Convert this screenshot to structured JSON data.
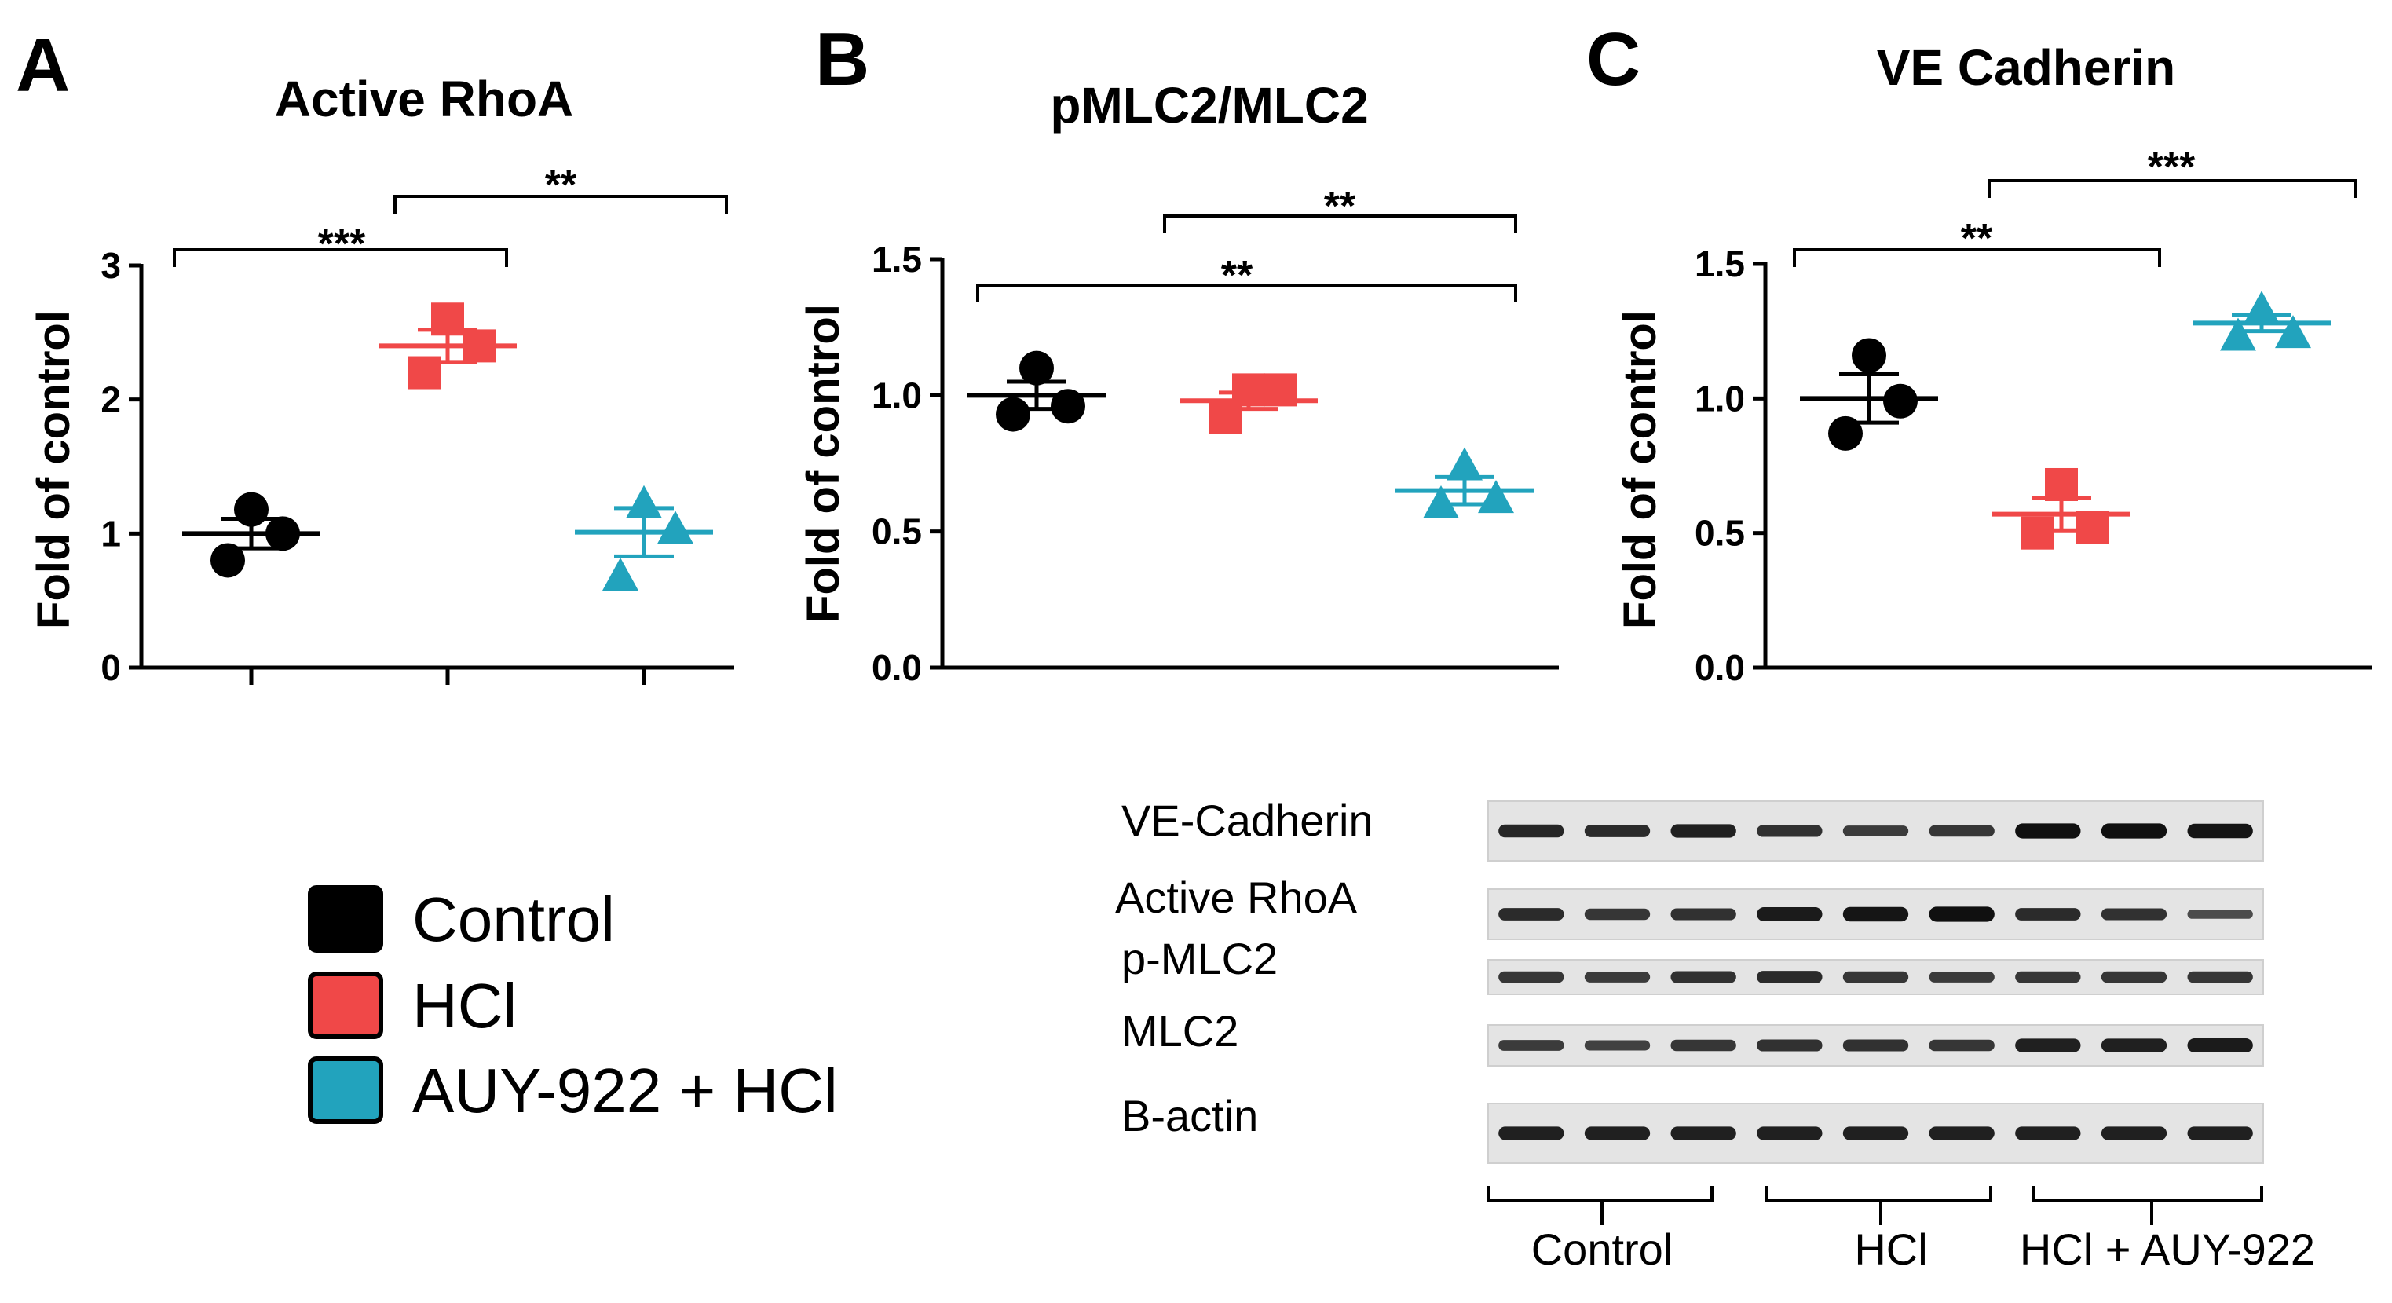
{
  "colors": {
    "Control": "#000000",
    "HCl": "#f04848",
    "AUY-922 + HCl": "#22a3bd",
    "axis": "#000000"
  },
  "legend": [
    {
      "label": "Control",
      "color": "#000000"
    },
    {
      "label": "HCl",
      "color": "#f04848"
    },
    {
      "label": "AUY-922 + HCl",
      "color": "#22a3bd"
    }
  ],
  "chart_data": [
    {
      "panel": "A",
      "type": "scatter",
      "title": "Active RhoA",
      "ylabel": "Fold of control",
      "xlabel": "",
      "ylim": [
        0,
        3
      ],
      "yticks": [
        "0",
        "1",
        "2",
        "3"
      ],
      "grid": false,
      "series": [
        {
          "name": "Control",
          "marker": "circle",
          "points": [
            0.8,
            1.0,
            1.18
          ],
          "mean": 1.0,
          "sem": 0.11
        },
        {
          "name": "HCl",
          "marker": "square",
          "points": [
            2.2,
            2.4,
            2.6
          ],
          "mean": 2.4,
          "sem": 0.12
        },
        {
          "name": "AUY-922 + HCl",
          "marker": "triangle",
          "points": [
            0.68,
            1.03,
            1.22
          ],
          "mean": 1.01,
          "sem": 0.18
        }
      ],
      "significance": [
        {
          "from": 0,
          "to": 1,
          "label": "***"
        },
        {
          "from": 1,
          "to": 2,
          "label": "**"
        }
      ]
    },
    {
      "panel": "B",
      "type": "scatter",
      "title": "pMLC2/MLC2",
      "ylabel": "Fold of control",
      "xlabel": "",
      "ylim": [
        0,
        1.5
      ],
      "yticks": [
        "0.0",
        "0.5",
        "1.0",
        "1.5"
      ],
      "grid": false,
      "series": [
        {
          "name": "Control",
          "marker": "circle",
          "points": [
            0.93,
            0.96,
            1.1
          ],
          "mean": 1.0,
          "sem": 0.05
        },
        {
          "name": "HCl",
          "marker": "square",
          "points": [
            0.92,
            1.02,
            1.02
          ],
          "mean": 0.98,
          "sem": 0.03
        },
        {
          "name": "AUY-922 + HCl",
          "marker": "triangle",
          "points": [
            0.6,
            0.62,
            0.74
          ],
          "mean": 0.65,
          "sem": 0.05
        }
      ],
      "significance": [
        {
          "from": 1,
          "to": 2,
          "label": "**"
        },
        {
          "from": 0,
          "to": 2,
          "label": "**"
        }
      ]
    },
    {
      "panel": "C",
      "type": "scatter",
      "title": "VE Cadherin",
      "ylabel": "Fold of control",
      "xlabel": "",
      "ylim": [
        0,
        1.5
      ],
      "yticks": [
        "0.0",
        "0.5",
        "1.0",
        "1.5"
      ],
      "grid": false,
      "series": [
        {
          "name": "Control",
          "marker": "circle",
          "points": [
            0.87,
            0.99,
            1.16
          ],
          "mean": 1.0,
          "sem": 0.09
        },
        {
          "name": "HCl",
          "marker": "square",
          "points": [
            0.5,
            0.52,
            0.68
          ],
          "mean": 0.57,
          "sem": 0.06
        },
        {
          "name": "AUY-922 + HCl",
          "marker": "triangle",
          "points": [
            1.23,
            1.24,
            1.33
          ],
          "mean": 1.28,
          "sem": 0.03
        }
      ],
      "significance": [
        {
          "from": 0,
          "to": 1,
          "label": "**"
        },
        {
          "from": 1,
          "to": 2,
          "label": "***"
        }
      ]
    }
  ],
  "western_blot": {
    "rows": [
      {
        "label": "VE-Cadherin",
        "band_intensity": [
          0.75,
          0.7,
          0.8,
          0.65,
          0.55,
          0.6,
          0.95,
          0.95,
          0.9
        ]
      },
      {
        "label": "Active RhoA",
        "band_intensity": [
          0.7,
          0.6,
          0.65,
          0.85,
          0.9,
          0.95,
          0.7,
          0.65,
          0.4
        ]
      },
      {
        "label": "p-MLC2",
        "band_intensity": [
          0.6,
          0.55,
          0.65,
          0.7,
          0.6,
          0.55,
          0.6,
          0.6,
          0.6
        ]
      },
      {
        "label": "MLC2",
        "band_intensity": [
          0.55,
          0.5,
          0.6,
          0.65,
          0.65,
          0.6,
          0.8,
          0.8,
          0.85
        ]
      },
      {
        "label": "B-actin",
        "band_intensity": [
          0.8,
          0.8,
          0.8,
          0.8,
          0.8,
          0.8,
          0.8,
          0.8,
          0.8
        ]
      }
    ],
    "groups": [
      "Control",
      "HCl",
      "HCl + AUY-922"
    ]
  }
}
